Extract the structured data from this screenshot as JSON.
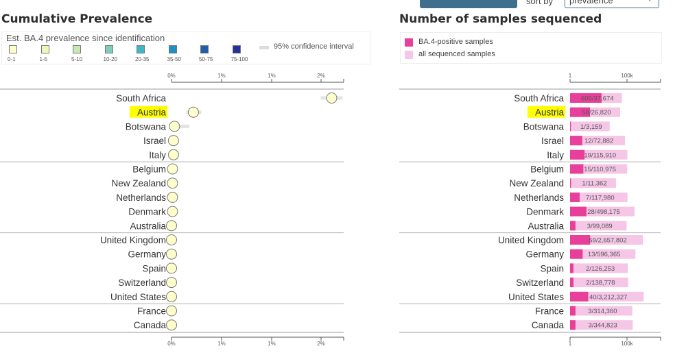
{
  "controls": {
    "sort_label": "sort by",
    "sort_value": "prevalence",
    "chevron": "▾"
  },
  "left_panel": {
    "title": "Cumulative Prevalence",
    "legend_title": "Est. BA.4 prevalence since identification",
    "legend_bins": [
      {
        "label": "0-1",
        "color": "#ffffcc"
      },
      {
        "label": "1-5",
        "color": "#eef7b8"
      },
      {
        "label": "5-10",
        "color": "#c7e9b4"
      },
      {
        "label": "10-20",
        "color": "#7fcdbb"
      },
      {
        "label": "20-35",
        "color": "#41b6c4"
      },
      {
        "label": "35-50",
        "color": "#1d91c0"
      },
      {
        "label": "50-75",
        "color": "#225ea8"
      },
      {
        "label": "75-100",
        "color": "#253494"
      }
    ],
    "ci_label": "95% confidence interval"
  },
  "right_panel": {
    "title": "Number of samples sequenced",
    "legend": [
      {
        "label": "BA.4-positive samples",
        "color": "#e8409a"
      },
      {
        "label": "all sequenced samples",
        "color": "#f5c6e6"
      }
    ]
  },
  "highlight_color": "#ffff00",
  "chart_data": [
    {
      "type": "scatter",
      "title": "Cumulative Prevalence",
      "x_ticks": [
        "0%",
        "1%",
        "1%",
        "2%"
      ],
      "categories": [
        "South Africa",
        "Austria",
        "Botswana",
        "Israel",
        "Italy",
        "Belgium",
        "New Zealand",
        "Netherlands",
        "Denmark",
        "Australia",
        "United Kingdom",
        "Germany",
        "Spain",
        "Switzerland",
        "United States",
        "France",
        "Canada"
      ],
      "highlighted": [
        "Austria"
      ],
      "values": [
        1.61,
        0.22,
        0.03,
        0.02,
        0.02,
        0.01,
        0.01,
        0.01,
        0.01,
        0.0,
        0.0,
        0.0,
        0.0,
        0.0,
        0.0,
        0.0,
        0.0
      ],
      "ci": [
        [
          1.5,
          1.72
        ],
        [
          0.15,
          0.3
        ],
        [
          0.0,
          0.18
        ],
        [
          0.0,
          0.05
        ],
        [
          0.0,
          0.04
        ],
        [
          0.0,
          0.03
        ],
        [
          0.0,
          0.05
        ],
        [
          0.0,
          0.03
        ],
        [
          0.0,
          0.02
        ],
        [
          0.0,
          0.02
        ],
        [
          0.0,
          0.01
        ],
        [
          0.0,
          0.01
        ],
        [
          0.0,
          0.01
        ],
        [
          0.0,
          0.01
        ],
        [
          0.0,
          0.01
        ],
        [
          0.0,
          0.01
        ],
        [
          0.0,
          0.01
        ]
      ],
      "group_sizes": [
        5,
        5,
        5,
        2
      ]
    },
    {
      "type": "bar",
      "title": "Number of samples sequenced",
      "scale": "log",
      "x_ticks": [
        "1",
        "100k"
      ],
      "categories": [
        "South Africa",
        "Austria",
        "Botswana",
        "Israel",
        "Italy",
        "Belgium",
        "New Zealand",
        "Netherlands",
        "Denmark",
        "Australia",
        "United Kingdom",
        "Germany",
        "Spain",
        "Switzerland",
        "United States",
        "France",
        "Canada"
      ],
      "highlighted": [
        "Austria"
      ],
      "series": [
        {
          "name": "BA.4-positive samples",
          "values": [
            605,
            58,
            1,
            12,
            19,
            15,
            1,
            7,
            28,
            3,
            59,
            13,
            2,
            2,
            40,
            3,
            3
          ]
        },
        {
          "name": "all sequenced samples",
          "values": [
            37674,
            26820,
            3159,
            72882,
            115910,
            110975,
            11362,
            117980,
            498175,
            99089,
            2657802,
            596365,
            126253,
            138778,
            3212327,
            314360,
            344823
          ]
        }
      ],
      "labels": [
        "605/37,674",
        "58/26,820",
        "1/3,159",
        "12/72,882",
        "19/115,910",
        "15/110,975",
        "1/11,362",
        "7/117,980",
        "28/498,175",
        "3/99,089",
        "59/2,657,802",
        "13/596,365",
        "2/126,253",
        "2/138,778",
        "40/3,212,327",
        "3/314,360",
        "3/344,823"
      ]
    }
  ]
}
